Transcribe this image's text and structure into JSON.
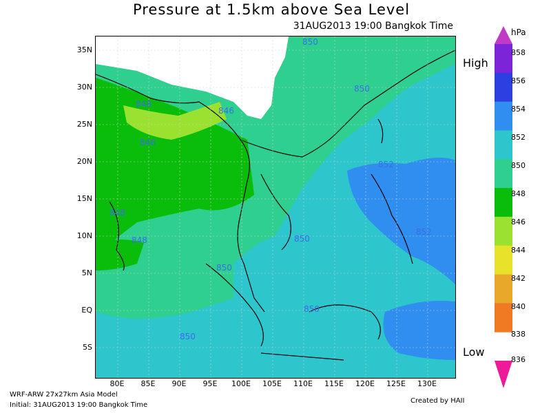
{
  "title": "Pressure at 1.5km above Sea Level",
  "subtitle": "31AUG2013 19:00 Bangkok Time",
  "y_axis": [
    "35N",
    "30N",
    "25N",
    "20N",
    "15N",
    "10N",
    "5N",
    "EQ",
    "5S"
  ],
  "x_axis": [
    "80E",
    "85E",
    "90E",
    "95E",
    "100E",
    "105E",
    "110E",
    "115E",
    "120E",
    "125E",
    "130E"
  ],
  "colorbar": {
    "unit": "hPa",
    "high_label": "High",
    "low_label": "Low",
    "levels": [
      "858",
      "856",
      "854",
      "852",
      "850",
      "848",
      "846",
      "844",
      "842",
      "840",
      "838",
      "836"
    ],
    "colors": [
      "#c03ac8",
      "#7b24d8",
      "#2c3fe0",
      "#2f8ef0",
      "#2cc6cc",
      "#2fcf8f",
      "#0bbd0b",
      "#9ae22f",
      "#e8e22a",
      "#e8a82a",
      "#f07a24",
      "#ee1a9a"
    ]
  },
  "contour_labels": [
    {
      "text": "850",
      "label": "north"
    },
    {
      "text": "850",
      "label": "taiwan-strait"
    },
    {
      "text": "848",
      "label": "tibet-south"
    },
    {
      "text": "846",
      "label": "tibet-west"
    },
    {
      "text": "846",
      "label": "bangladesh"
    },
    {
      "text": "848",
      "label": "bay-of-bengal"
    },
    {
      "text": "848",
      "label": "sri-lanka"
    },
    {
      "text": "852",
      "label": "philippines-north"
    },
    {
      "text": "852",
      "label": "philippines-east"
    },
    {
      "text": "850",
      "label": "malaysia"
    },
    {
      "text": "850",
      "label": "sumatra"
    },
    {
      "text": "850",
      "label": "borneo"
    },
    {
      "text": "850",
      "label": "java"
    }
  ],
  "footer": {
    "model": "WRF-ARW 27x27km Asia Model",
    "initial": "Initial: 31AUG2013 19:00 Bangkok Time",
    "credit": "Created by HAII"
  }
}
